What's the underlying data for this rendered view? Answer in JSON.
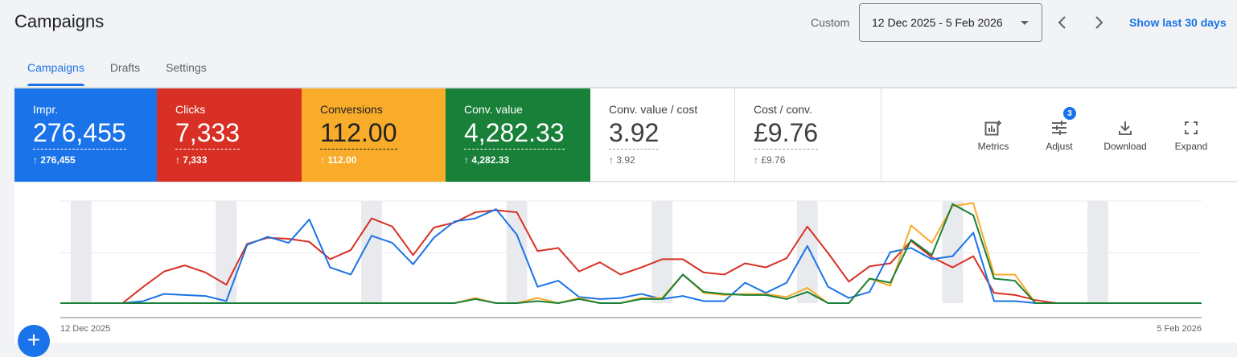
{
  "header": {
    "title": "Campaigns",
    "date_range_label": "Custom",
    "date_range": "12 Dec 2025 - 5 Feb 2026",
    "show_last_30": "Show last 30 days"
  },
  "tabs": [
    {
      "label": "Campaigns",
      "active": true
    },
    {
      "label": "Drafts"
    },
    {
      "label": "Settings"
    }
  ],
  "metrics": [
    {
      "label": "Impr.",
      "value": "276,455",
      "change": "276,455",
      "color": "#1a73e8",
      "text": "#ffffff"
    },
    {
      "label": "Clicks",
      "value": "7,333",
      "change": "7,333",
      "color": "#d93025",
      "text": "#ffffff"
    },
    {
      "label": "Conversions",
      "value": "112.00",
      "change": "112.00",
      "color": "#f9ab2a",
      "text": "#202124"
    },
    {
      "label": "Conv. value",
      "value": "4,282.33",
      "change": "4,282.33",
      "color": "#188038",
      "text": "#ffffff"
    },
    {
      "label": "Conv. value / cost",
      "value": "3.92",
      "change": "3.92"
    },
    {
      "label": "Cost / conv.",
      "value": "£9.76",
      "change": "£9.76"
    }
  ],
  "toolbar": {
    "metrics": "Metrics",
    "adjust": "Adjust",
    "adjust_badge": "3",
    "download": "Download",
    "expand": "Expand"
  },
  "chart_data": {
    "type": "line",
    "x_start": "12 Dec 2025",
    "x_end": "5 Feb 2026",
    "x_tick_labels": [
      "12 Dec 2025",
      "5 Feb 2026"
    ],
    "y_scale": "each series normalized 0-100 (no y axis printed)",
    "grid": true,
    "weekend_bands": [
      1,
      8,
      15,
      22,
      29,
      36,
      43,
      50
    ],
    "series": [
      {
        "metric": "Clicks",
        "color": "#d93025",
        "values": [
          0,
          0,
          0,
          0,
          16,
          31,
          37,
          30,
          18,
          58,
          64,
          63,
          60,
          43,
          52,
          83,
          75,
          47,
          74,
          79,
          89,
          91,
          89,
          51,
          54,
          31,
          40,
          28,
          35,
          43,
          43,
          30,
          28,
          39,
          35,
          44,
          75,
          49,
          21,
          36,
          39,
          61,
          45,
          35,
          46,
          10,
          8,
          3,
          0,
          0,
          0,
          0,
          0,
          0,
          0,
          0
        ]
      },
      {
        "metric": "Impr.",
        "color": "#1a73e8",
        "values": [
          0,
          0,
          0,
          0,
          2,
          9,
          8,
          7,
          2,
          57,
          65,
          59,
          82,
          35,
          28,
          66,
          59,
          38,
          64,
          80,
          83,
          92,
          67,
          16,
          22,
          6,
          4,
          5,
          9,
          4,
          7,
          2,
          2,
          20,
          10,
          20,
          56,
          16,
          5,
          11,
          50,
          54,
          43,
          46,
          69,
          2,
          2,
          0,
          0,
          0,
          0,
          0,
          0,
          0,
          0,
          0
        ]
      },
      {
        "metric": "Conversions",
        "color": "#f9ab2a",
        "values": [
          0,
          0,
          0,
          0,
          0,
          0,
          0,
          0,
          0,
          0,
          0,
          0,
          0,
          0,
          0,
          0,
          0,
          0,
          0,
          0,
          5,
          0,
          0,
          5,
          0,
          5,
          0,
          0,
          5,
          5,
          28,
          10,
          8,
          9,
          9,
          6,
          15,
          0,
          0,
          24,
          17,
          76,
          59,
          95,
          98,
          28,
          28,
          0,
          0,
          0,
          0,
          0,
          0,
          0,
          0,
          0
        ]
      },
      {
        "metric": "Conv. value",
        "color": "#188038",
        "values": [
          0,
          0,
          0,
          0,
          0,
          0,
          0,
          0,
          0,
          0,
          0,
          0,
          0,
          0,
          0,
          0,
          0,
          0,
          0,
          0,
          4,
          0,
          0,
          2,
          0,
          4,
          0,
          0,
          4,
          4,
          28,
          11,
          9,
          8,
          8,
          4,
          11,
          0,
          0,
          24,
          20,
          62,
          47,
          97,
          86,
          24,
          22,
          0,
          0,
          0,
          0,
          0,
          0,
          0,
          0,
          0
        ]
      }
    ]
  }
}
